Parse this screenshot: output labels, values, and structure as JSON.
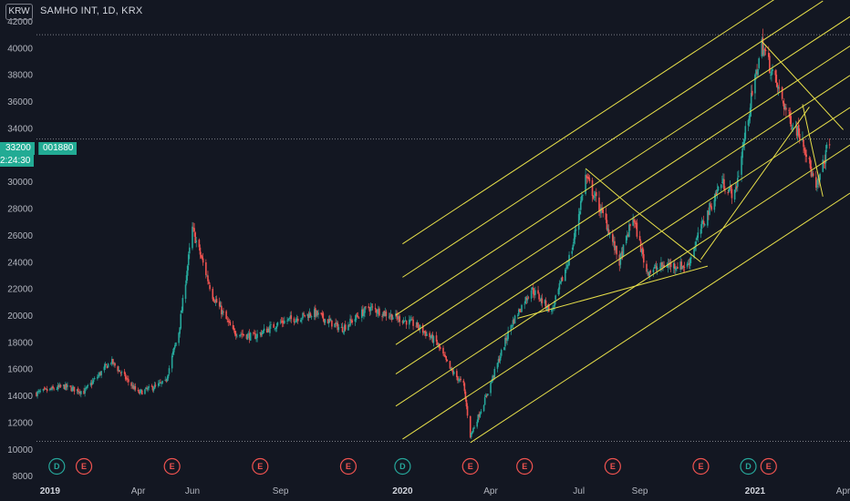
{
  "header": {
    "currency_badge": "KRW",
    "symbol_title": "SAMHO INT, 1D, KRX"
  },
  "price_tag": {
    "price": "33200",
    "code": "001880",
    "countdown": "2:24:30"
  },
  "colors": {
    "background": "#131722",
    "up": "#26a69a",
    "down": "#ef5350",
    "drawing": "#e8e04a",
    "dotted": "#9598a1",
    "price_tag": "#22ab94",
    "dividend": "#26a69a",
    "earnings": "#ef5350"
  },
  "chart_data": {
    "type": "candlestick",
    "title": "SAMHO INT, 1D, KRX",
    "currency": "KRW",
    "y_axis": {
      "ticks": [
        8000,
        10000,
        12000,
        14000,
        16000,
        18000,
        20000,
        22000,
        24000,
        26000,
        28000,
        30000,
        32000,
        34000,
        36000,
        38000,
        40000,
        42000
      ],
      "range": [
        7500,
        43600
      ]
    },
    "x_axis": {
      "range": [
        "2018-12-24",
        "2021-04-12"
      ],
      "labels": [
        {
          "text": "2019",
          "date": "2019-01-07",
          "bold": true
        },
        {
          "text": "Apr",
          "date": "2019-04-08",
          "bold": false
        },
        {
          "text": "Jun",
          "date": "2019-06-03",
          "bold": false
        },
        {
          "text": "Sep",
          "date": "2019-09-02",
          "bold": false
        },
        {
          "text": "2020",
          "date": "2020-01-06",
          "bold": true
        },
        {
          "text": "Apr",
          "date": "2020-04-06",
          "bold": false
        },
        {
          "text": "Jul",
          "date": "2020-07-06",
          "bold": false
        },
        {
          "text": "Sep",
          "date": "2020-09-07",
          "bold": false
        },
        {
          "text": "2021",
          "date": "2021-01-04",
          "bold": true
        },
        {
          "text": "Apr",
          "date": "2021-04-05",
          "bold": false
        }
      ]
    },
    "price_path": [
      [
        "2018-12-24",
        14200
      ],
      [
        "2019-01-21",
        14700
      ],
      [
        "2019-02-11",
        14300
      ],
      [
        "2019-03-11",
        16600
      ],
      [
        "2019-04-08",
        14200
      ],
      [
        "2019-05-06",
        15000
      ],
      [
        "2019-05-20",
        18800
      ],
      [
        "2019-06-03",
        26500
      ],
      [
        "2019-06-24",
        21500
      ],
      [
        "2019-07-15",
        18800
      ],
      [
        "2019-08-05",
        18400
      ],
      [
        "2019-09-02",
        19500
      ],
      [
        "2019-10-07",
        20200
      ],
      [
        "2019-11-04",
        19000
      ],
      [
        "2019-12-02",
        20600
      ],
      [
        "2020-01-06",
        19700
      ],
      [
        "2020-01-20",
        19300
      ],
      [
        "2020-02-10",
        18000
      ],
      [
        "2020-02-24",
        16000
      ],
      [
        "2020-03-09",
        14800
      ],
      [
        "2020-03-16",
        11000
      ],
      [
        "2020-03-30",
        13500
      ],
      [
        "2020-04-27",
        19300
      ],
      [
        "2020-05-18",
        22000
      ],
      [
        "2020-06-08",
        20300
      ],
      [
        "2020-06-29",
        25000
      ],
      [
        "2020-07-13",
        30400
      ],
      [
        "2020-08-03",
        27000
      ],
      [
        "2020-08-17",
        24000
      ],
      [
        "2020-08-31",
        27400
      ],
      [
        "2020-09-14",
        23300
      ],
      [
        "2020-10-05",
        23800
      ],
      [
        "2020-10-26",
        23700
      ],
      [
        "2020-11-09",
        26500
      ],
      [
        "2020-11-30",
        30000
      ],
      [
        "2020-12-14",
        29000
      ],
      [
        "2020-12-28",
        35000
      ],
      [
        "2021-01-11",
        40300
      ],
      [
        "2021-01-25",
        37500
      ],
      [
        "2021-02-08",
        34800
      ],
      [
        "2021-02-22",
        33300
      ],
      [
        "2021-03-08",
        29300
      ],
      [
        "2021-03-22",
        33200
      ]
    ],
    "horizontal_levels": [
      41000,
      10600,
      33200
    ],
    "events": [
      {
        "type": "D",
        "date": "2019-01-14"
      },
      {
        "type": "E",
        "date": "2019-02-11"
      },
      {
        "type": "E",
        "date": "2019-05-13"
      },
      {
        "type": "E",
        "date": "2019-08-12"
      },
      {
        "type": "E",
        "date": "2019-11-11"
      },
      {
        "type": "D",
        "date": "2020-01-06"
      },
      {
        "type": "E",
        "date": "2020-03-16"
      },
      {
        "type": "E",
        "date": "2020-05-11"
      },
      {
        "type": "E",
        "date": "2020-08-10"
      },
      {
        "type": "E",
        "date": "2020-11-09"
      },
      {
        "type": "D",
        "date": "2020-12-28"
      },
      {
        "type": "E",
        "date": "2021-01-18"
      }
    ],
    "drawings": {
      "parallel_channel": {
        "slope_per_day": 47.6,
        "base_point": [
          "2020-03-16",
          10500
        ],
        "lines": [
          {
            "offset": 0,
            "start": "2020-03-16",
            "end": "2021-04-12"
          },
          {
            "offset": 3600,
            "start": "2020-01-06",
            "end": "2021-04-12"
          },
          {
            "offset": 6400,
            "start": "2019-12-30",
            "end": "2021-04-12"
          },
          {
            "offset": 8800,
            "start": "2019-12-30",
            "end": "2021-04-12"
          },
          {
            "offset": 11000,
            "start": "2019-12-30",
            "end": "2021-04-12"
          },
          {
            "offset": 13200,
            "start": "2019-12-30",
            "end": "2021-04-12"
          },
          {
            "offset": 15700,
            "start": "2020-01-06",
            "end": "2021-03-15"
          },
          {
            "offset": 18200,
            "start": "2020-01-06",
            "end": "2021-03-15"
          }
        ]
      },
      "trend_lines": [
        {
          "from": [
            "2020-05-04",
            19800
          ],
          "to": [
            "2020-11-16",
            23700
          ]
        },
        {
          "from": [
            "2020-11-09",
            24200
          ],
          "to": [
            "2021-03-01",
            35600
          ]
        },
        {
          "from": [
            "2020-07-13",
            31000
          ],
          "to": [
            "2020-08-31",
            28000
          ]
        },
        {
          "from": [
            "2020-08-31",
            28000
          ],
          "to": [
            "2020-11-09",
            24000
          ]
        },
        {
          "from": [
            "2021-01-11",
            40500
          ],
          "to": [
            "2021-04-05",
            33900
          ]
        },
        {
          "from": [
            "2021-02-22",
            35800
          ],
          "to": [
            "2021-03-15",
            28900
          ]
        }
      ]
    }
  }
}
